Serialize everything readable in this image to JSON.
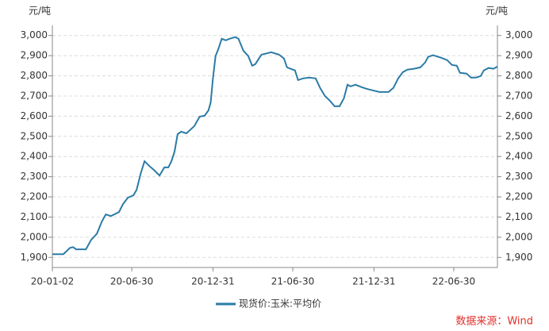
{
  "chart_data": {
    "type": "line",
    "y_label": "元/吨",
    "y2_label": "元/吨",
    "x": [
      "20-01-02",
      "20-01-27",
      "20-02-11",
      "20-02-18",
      "20-02-25",
      "20-03-18",
      "20-03-30",
      "20-04-12",
      "20-04-23",
      "20-05-02",
      "20-05-14",
      "20-06-01",
      "20-06-10",
      "20-06-21",
      "20-07-04",
      "20-07-11",
      "20-07-20",
      "20-07-29",
      "20-08-09",
      "20-08-19",
      "20-09-01",
      "20-09-12",
      "20-09-21",
      "20-09-28",
      "20-10-05",
      "20-10-12",
      "20-10-20",
      "20-11-01",
      "20-11-19",
      "20-12-01",
      "20-12-12",
      "20-12-21",
      "20-12-26",
      "20-12-31",
      "21-01-06",
      "21-01-13",
      "21-01-20",
      "21-01-29",
      "21-02-07",
      "21-02-20",
      "21-02-27",
      "21-03-10",
      "21-03-21",
      "21-03-30",
      "21-04-06",
      "21-04-20",
      "21-05-05",
      "21-05-12",
      "21-05-30",
      "21-06-10",
      "21-06-17",
      "21-07-05",
      "21-07-12",
      "21-07-23",
      "21-08-06",
      "21-08-21",
      "21-08-31",
      "21-09-11",
      "21-09-22",
      "21-10-03",
      "21-10-14",
      "21-10-24",
      "21-11-01",
      "21-11-08",
      "21-11-19",
      "21-12-03",
      "21-12-14",
      "21-12-28",
      "22-01-12",
      "22-02-02",
      "22-02-13",
      "22-02-24",
      "22-03-07",
      "22-03-17",
      "22-04-01",
      "22-04-15",
      "22-04-26",
      "22-05-03",
      "22-05-14",
      "22-06-01",
      "22-06-15",
      "22-06-26",
      "22-07-07",
      "22-07-14",
      "22-07-29",
      "22-08-08",
      "22-08-19",
      "22-08-30",
      "22-09-06",
      "22-09-17",
      "22-09-28",
      "22-10-07"
    ],
    "series": [
      {
        "name": "现货价:玉米:平均价",
        "color": "#2b7ba6",
        "values": [
          1916,
          1916,
          1947,
          1951,
          1940,
          1940,
          1987,
          2018,
          2077,
          2113,
          2105,
          2125,
          2164,
          2196,
          2208,
          2235,
          2314,
          2377,
          2353,
          2334,
          2306,
          2346,
          2346,
          2377,
          2424,
          2511,
          2523,
          2515,
          2551,
          2598,
          2602,
          2629,
          2669,
          2787,
          2898,
          2937,
          2984,
          2976,
          2984,
          2992,
          2984,
          2925,
          2898,
          2850,
          2858,
          2905,
          2913,
          2917,
          2905,
          2886,
          2842,
          2827,
          2779,
          2787,
          2791,
          2787,
          2740,
          2700,
          2677,
          2649,
          2649,
          2689,
          2756,
          2748,
          2756,
          2744,
          2736,
          2728,
          2720,
          2720,
          2740,
          2787,
          2819,
          2831,
          2835,
          2842,
          2866,
          2894,
          2902,
          2890,
          2878,
          2854,
          2850,
          2815,
          2811,
          2791,
          2791,
          2799,
          2827,
          2839,
          2835,
          2846
        ]
      }
    ],
    "xlim": [
      "20-01-02",
      "22-10-07"
    ],
    "xticks": [
      "20-01-02",
      "20-06-30",
      "20-12-31",
      "21-06-30",
      "21-12-31",
      "22-06-30"
    ],
    "ylim": [
      1850,
      3050
    ],
    "yticks": [
      {
        "value": 1900,
        "label": "1,900"
      },
      {
        "value": 2000,
        "label": "2,000"
      },
      {
        "value": 2100,
        "label": "2,100"
      },
      {
        "value": 2200,
        "label": "2,200"
      },
      {
        "value": 2300,
        "label": "2,300"
      },
      {
        "value": 2400,
        "label": "2,400"
      },
      {
        "value": 2500,
        "label": "2,500"
      },
      {
        "value": 2600,
        "label": "2,600"
      },
      {
        "value": 2700,
        "label": "2,700"
      },
      {
        "value": 2800,
        "label": "2,800"
      },
      {
        "value": 2900,
        "label": "2,900"
      },
      {
        "value": 3000,
        "label": "3,000"
      }
    ],
    "y2lim": [
      1850,
      3050
    ],
    "y2ticks": [
      {
        "value": 1900,
        "label": "1,900"
      },
      {
        "value": 2000,
        "label": "2,000"
      },
      {
        "value": 2100,
        "label": "2,100"
      },
      {
        "value": 2200,
        "label": "2,200"
      },
      {
        "value": 2300,
        "label": "2,300"
      },
      {
        "value": 2400,
        "label": "2,400"
      },
      {
        "value": 2500,
        "label": "2,500"
      },
      {
        "value": 2600,
        "label": "2,600"
      },
      {
        "value": 2700,
        "label": "2,700"
      },
      {
        "value": 2800,
        "label": "2,800"
      },
      {
        "value": 2900,
        "label": "2,900"
      },
      {
        "value": 3000,
        "label": "3,000"
      }
    ],
    "grid": true,
    "source": "数据来源：Wind"
  }
}
